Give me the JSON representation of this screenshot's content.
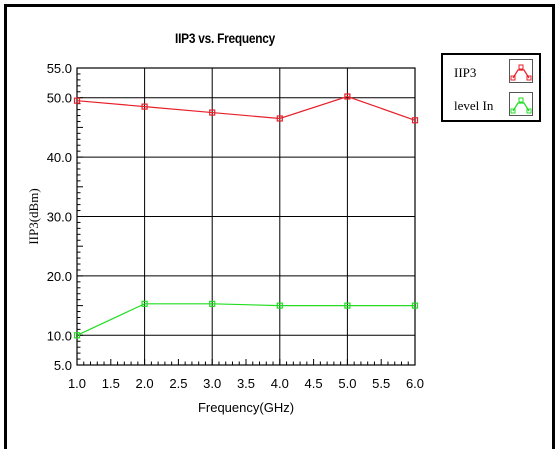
{
  "chart_data": {
    "type": "line",
    "title": "IIP3 vs. Frequency",
    "xlabel": "Frequency(GHz)",
    "ylabel": "IIP3(dBm)",
    "xlim": [
      1.0,
      6.0
    ],
    "ylim": [
      5.0,
      55.0
    ],
    "x_ticks": [
      "1.0",
      "1.5",
      "2.0",
      "2.5",
      "3.0",
      "3.5",
      "4.0",
      "4.5",
      "5.0",
      "5.5",
      "6.0"
    ],
    "y_ticks": [
      "5.0",
      "10.0",
      "20.0",
      "30.0",
      "40.0",
      "50.0",
      "55.0"
    ],
    "grid": true,
    "legend_position": "right",
    "x": [
      1.0,
      2.0,
      3.0,
      4.0,
      5.0,
      6.0
    ],
    "series": [
      {
        "name": "IIP3",
        "color": "#e8202a",
        "values": [
          49.5,
          48.5,
          47.5,
          46.5,
          50.2,
          46.2
        ]
      },
      {
        "name": "level In",
        "color": "#22dd22",
        "values": [
          10.0,
          15.3,
          15.3,
          15.0,
          15.0,
          15.0
        ]
      }
    ]
  }
}
